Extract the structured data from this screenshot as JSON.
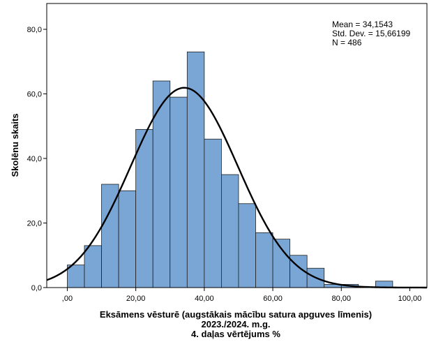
{
  "chart_data": {
    "type": "bar",
    "subtype": "histogram",
    "bin_width": 5,
    "bins": [
      {
        "start": 0,
        "end": 5,
        "count": 7
      },
      {
        "start": 5,
        "end": 10,
        "count": 13
      },
      {
        "start": 10,
        "end": 15,
        "count": 32
      },
      {
        "start": 15,
        "end": 20,
        "count": 30
      },
      {
        "start": 20,
        "end": 25,
        "count": 49
      },
      {
        "start": 25,
        "end": 30,
        "count": 64
      },
      {
        "start": 30,
        "end": 35,
        "count": 59
      },
      {
        "start": 35,
        "end": 40,
        "count": 73
      },
      {
        "start": 40,
        "end": 45,
        "count": 46
      },
      {
        "start": 45,
        "end": 50,
        "count": 35
      },
      {
        "start": 50,
        "end": 55,
        "count": 26
      },
      {
        "start": 55,
        "end": 60,
        "count": 17
      },
      {
        "start": 60,
        "end": 65,
        "count": 15
      },
      {
        "start": 65,
        "end": 70,
        "count": 10
      },
      {
        "start": 70,
        "end": 75,
        "count": 6
      },
      {
        "start": 75,
        "end": 80,
        "count": 1
      },
      {
        "start": 80,
        "end": 85,
        "count": 1
      },
      {
        "start": 85,
        "end": 90,
        "count": 0
      },
      {
        "start": 90,
        "end": 95,
        "count": 2
      },
      {
        "start": 95,
        "end": 100,
        "count": 0
      }
    ],
    "normal_curve": {
      "mean": 34.1543,
      "std_dev": 15.66199,
      "n": 486
    },
    "xlim": [
      -6,
      105
    ],
    "ylim": [
      0,
      88
    ],
    "x_ticks": [
      {
        "value": 0,
        "label": ",00"
      },
      {
        "value": 20,
        "label": "20,00"
      },
      {
        "value": 40,
        "label": "40,00"
      },
      {
        "value": 60,
        "label": "60,00"
      },
      {
        "value": 80,
        "label": "80,00"
      },
      {
        "value": 100,
        "label": "100,00"
      }
    ],
    "y_ticks": [
      {
        "value": 0,
        "label": "0,0"
      },
      {
        "value": 20,
        "label": "20,0"
      },
      {
        "value": 40,
        "label": "40,0"
      },
      {
        "value": 60,
        "label": "60,0"
      },
      {
        "value": 80,
        "label": "80,0"
      }
    ],
    "xlabel_lines": [
      "Eksāmens vēsturē (augstākais mācību satura apguves līmenis)",
      "2023./2024. m.g.",
      "4. daļas vērtējums %"
    ],
    "ylabel": "Skolēnu skaits",
    "stats_lines": [
      "Mean = 34,1543",
      "Std. Dev. = 15,66199",
      "N = 486"
    ],
    "stats_position": "top-right",
    "grid": false,
    "colors": {
      "bar_fill": "#7aa6d6",
      "bar_stroke": "#1f1f1f",
      "curve": "#000000",
      "axis": "#000000"
    }
  }
}
